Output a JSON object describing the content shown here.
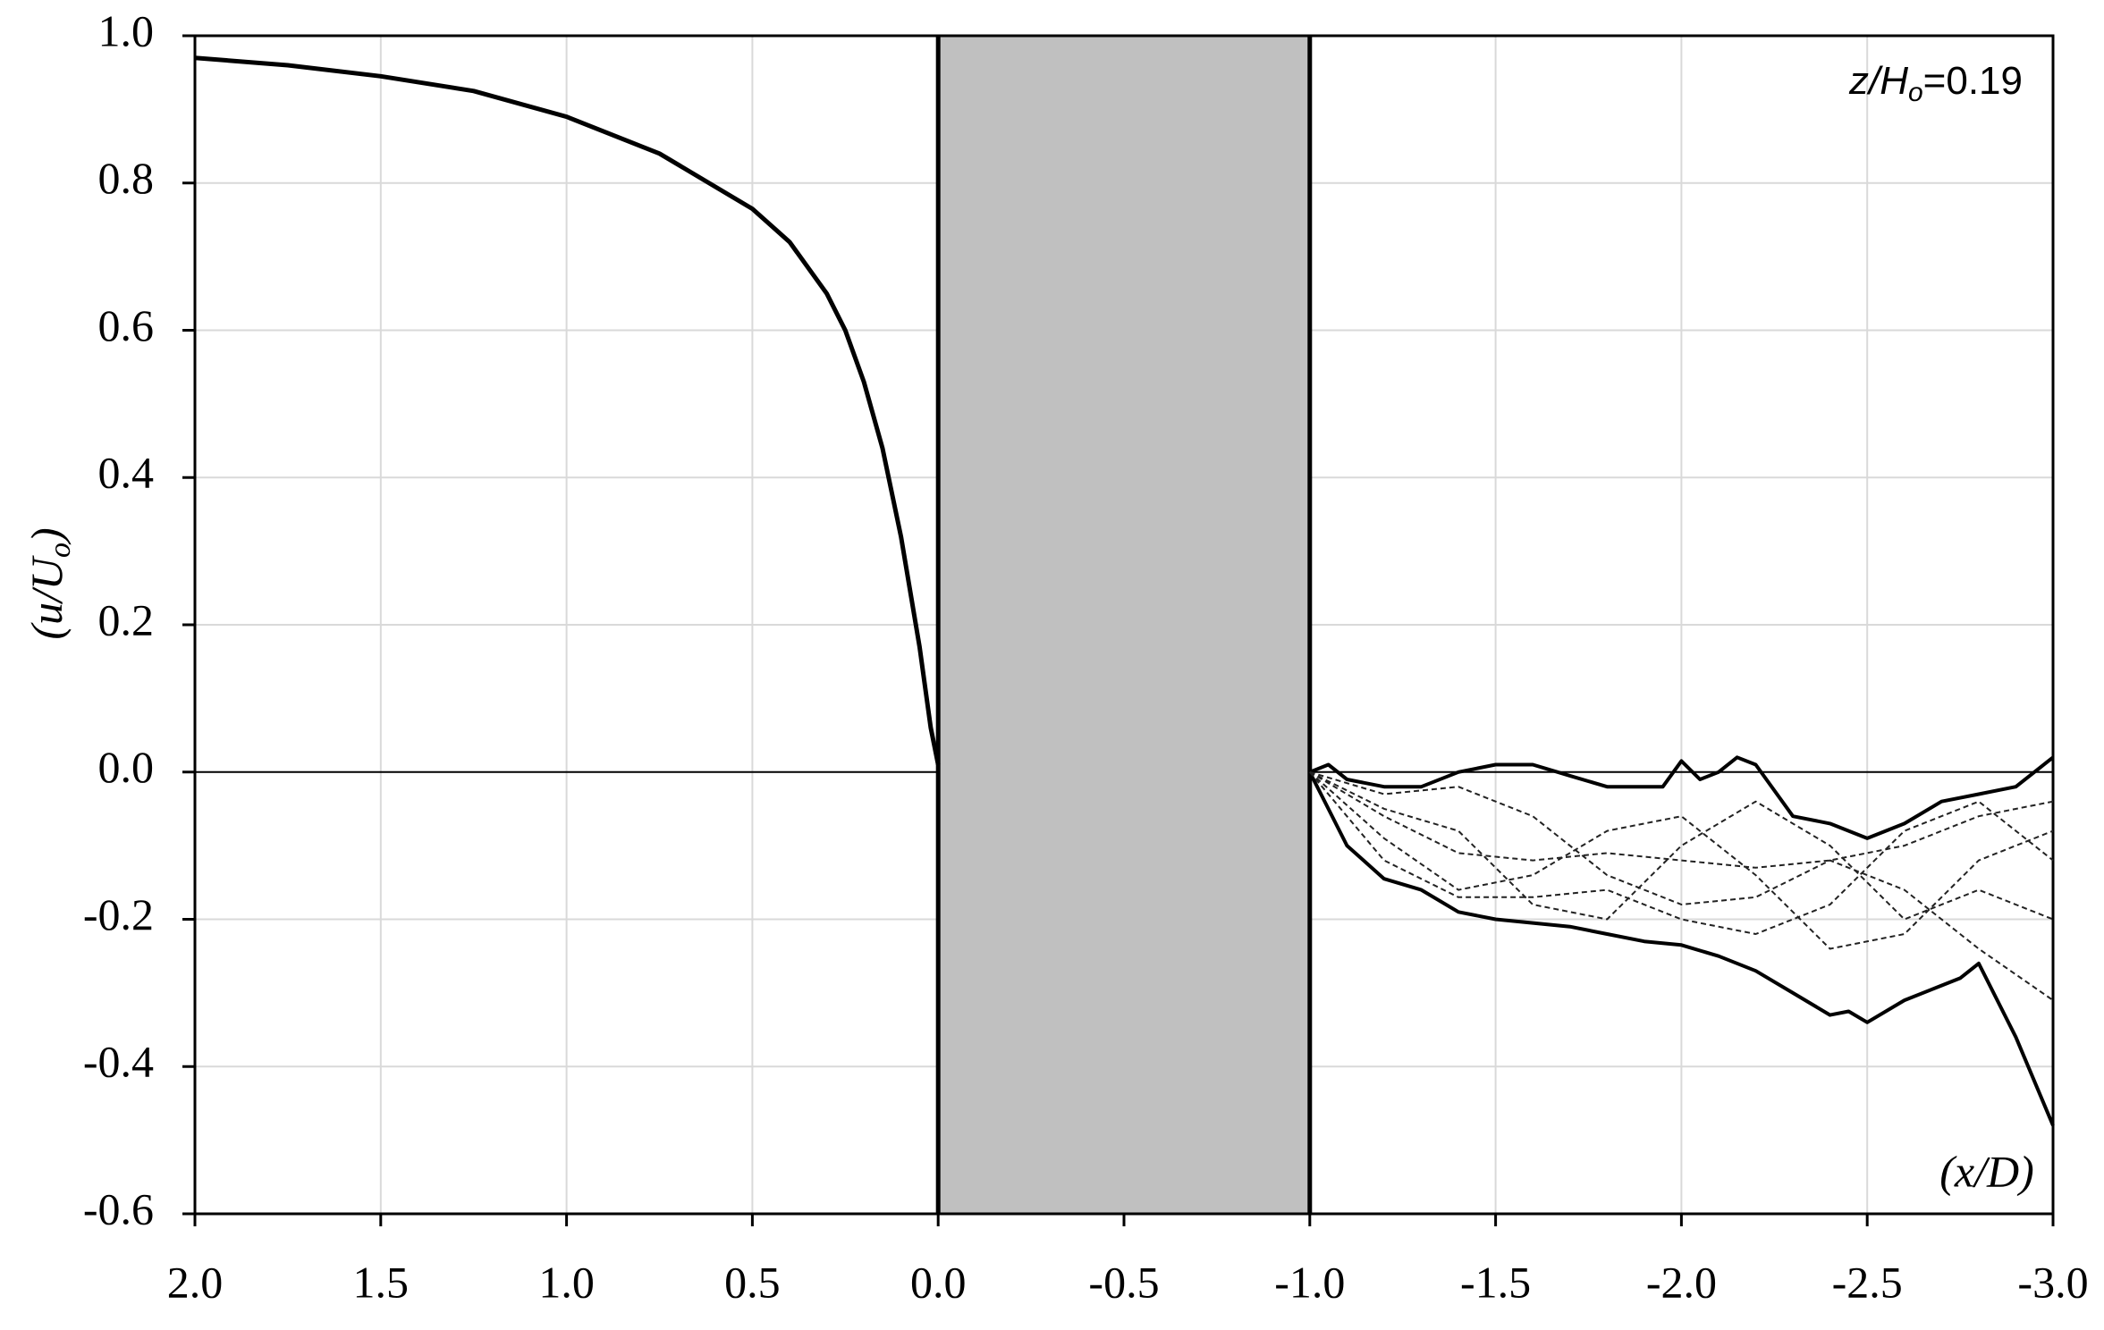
{
  "chart_data": {
    "type": "line",
    "y_label": {
      "open": "(u/U",
      "sub": "o",
      "close": ")"
    },
    "x_label": "(x/D)",
    "annotation": {
      "var": "z/H",
      "sub": "o",
      "rest": "=0.19"
    },
    "xlim": [
      2.0,
      -3.0
    ],
    "ylim": [
      -0.6,
      1.0
    ],
    "xticks": [
      {
        "value": 2.0,
        "label": "2.0"
      },
      1.5,
      {
        "value": 1.0,
        "label": "1.0"
      },
      0.5,
      {
        "value": 0.0,
        "label": "0.0"
      },
      -0.5,
      {
        "value": -1.0,
        "label": "-1.0"
      },
      -1.5,
      {
        "value": -2.0,
        "label": "-2.0"
      },
      -2.5,
      {
        "value": -3.0,
        "label": "-3.0"
      }
    ],
    "yticks": [
      {
        "value": 1.0,
        "label": "1.0"
      },
      0.8,
      0.6,
      0.4,
      0.2,
      {
        "value": 0.0,
        "label": "0.0"
      },
      -0.2,
      -0.4,
      -0.6
    ],
    "grid": true,
    "shade_x": [
      0.0,
      -1.0
    ],
    "shade_color": "#c0c0c0",
    "series": [
      {
        "color": "#000000",
        "style": "solid",
        "width": 5,
        "x": [
          2.0,
          1.75,
          1.5,
          1.25,
          1.0,
          0.75,
          0.5,
          0.4,
          0.3,
          0.25,
          0.2,
          0.15,
          0.1,
          0.05,
          0.02,
          0.0
        ],
        "values": [
          0.97,
          0.96,
          0.945,
          0.925,
          0.89,
          0.84,
          0.765,
          0.72,
          0.65,
          0.6,
          0.53,
          0.44,
          0.32,
          0.17,
          0.06,
          0.01
        ]
      },
      {
        "color": "#000000",
        "style": "solid",
        "width": 4,
        "x": [
          -1.0,
          -1.05,
          -1.1,
          -1.2,
          -1.3,
          -1.4,
          -1.5,
          -1.6,
          -1.7,
          -1.8,
          -1.9,
          -1.95,
          -2.0,
          -2.05,
          -2.1,
          -2.15,
          -2.2,
          -2.3,
          -2.4,
          -2.5,
          -2.6,
          -2.7,
          -2.8,
          -2.9,
          -3.0
        ],
        "values": [
          0.0,
          0.01,
          -0.01,
          -0.02,
          -0.02,
          0.0,
          0.01,
          0.01,
          -0.005,
          -0.02,
          -0.02,
          -0.02,
          0.015,
          -0.01,
          0.0,
          0.02,
          0.01,
          -0.06,
          -0.07,
          -0.09,
          -0.07,
          -0.04,
          -0.03,
          -0.02,
          0.02
        ]
      },
      {
        "color": "#000000",
        "style": "solid",
        "width": 4,
        "x": [
          -1.0,
          -1.05,
          -1.1,
          -1.2,
          -1.3,
          -1.4,
          -1.5,
          -1.6,
          -1.7,
          -1.8,
          -1.9,
          -2.0,
          -2.1,
          -2.2,
          -2.3,
          -2.4,
          -2.45,
          -2.5,
          -2.6,
          -2.7,
          -2.75,
          -2.8,
          -2.9,
          -3.0
        ],
        "values": [
          0.0,
          -0.05,
          -0.1,
          -0.145,
          -0.16,
          -0.19,
          -0.2,
          -0.205,
          -0.21,
          -0.22,
          -0.23,
          -0.235,
          -0.25,
          -0.27,
          -0.3,
          -0.33,
          -0.325,
          -0.34,
          -0.31,
          -0.29,
          -0.28,
          -0.26,
          -0.36,
          -0.48
        ]
      },
      {
        "color": "#222222",
        "style": "dashed",
        "width": 2,
        "x": [
          -1.0,
          -1.2,
          -1.4,
          -1.6,
          -1.8,
          -2.0,
          -2.2,
          -2.4,
          -2.6,
          -2.8,
          -3.0
        ],
        "values": [
          0.0,
          -0.06,
          -0.11,
          -0.12,
          -0.11,
          -0.12,
          -0.13,
          -0.12,
          -0.1,
          -0.06,
          -0.04
        ]
      },
      {
        "color": "#222222",
        "style": "dashed",
        "width": 2,
        "x": [
          -1.0,
          -1.2,
          -1.4,
          -1.6,
          -1.8,
          -2.0,
          -2.2,
          -2.4,
          -2.6,
          -2.8,
          -3.0
        ],
        "values": [
          0.0,
          -0.03,
          -0.02,
          -0.06,
          -0.14,
          -0.18,
          -0.17,
          -0.12,
          -0.16,
          -0.24,
          -0.31
        ]
      },
      {
        "color": "#222222",
        "style": "dashed",
        "width": 2,
        "x": [
          -1.0,
          -1.2,
          -1.4,
          -1.6,
          -1.8,
          -2.0,
          -2.2,
          -2.4,
          -2.6,
          -2.8,
          -3.0
        ],
        "values": [
          0.0,
          -0.09,
          -0.16,
          -0.14,
          -0.08,
          -0.06,
          -0.14,
          -0.24,
          -0.22,
          -0.12,
          -0.08
        ]
      },
      {
        "color": "#222222",
        "style": "dashed",
        "width": 2,
        "x": [
          -1.0,
          -1.2,
          -1.4,
          -1.6,
          -1.8,
          -2.0,
          -2.2,
          -2.4,
          -2.6,
          -2.8,
          -3.0
        ],
        "values": [
          0.0,
          -0.05,
          -0.08,
          -0.18,
          -0.2,
          -0.1,
          -0.04,
          -0.1,
          -0.2,
          -0.16,
          -0.2
        ]
      },
      {
        "color": "#222222",
        "style": "dashed",
        "width": 2,
        "x": [
          -1.0,
          -1.2,
          -1.4,
          -1.6,
          -1.8,
          -2.0,
          -2.2,
          -2.4,
          -2.6,
          -2.8,
          -3.0
        ],
        "values": [
          0.0,
          -0.12,
          -0.17,
          -0.17,
          -0.16,
          -0.2,
          -0.22,
          -0.18,
          -0.08,
          -0.04,
          -0.12
        ]
      }
    ]
  }
}
